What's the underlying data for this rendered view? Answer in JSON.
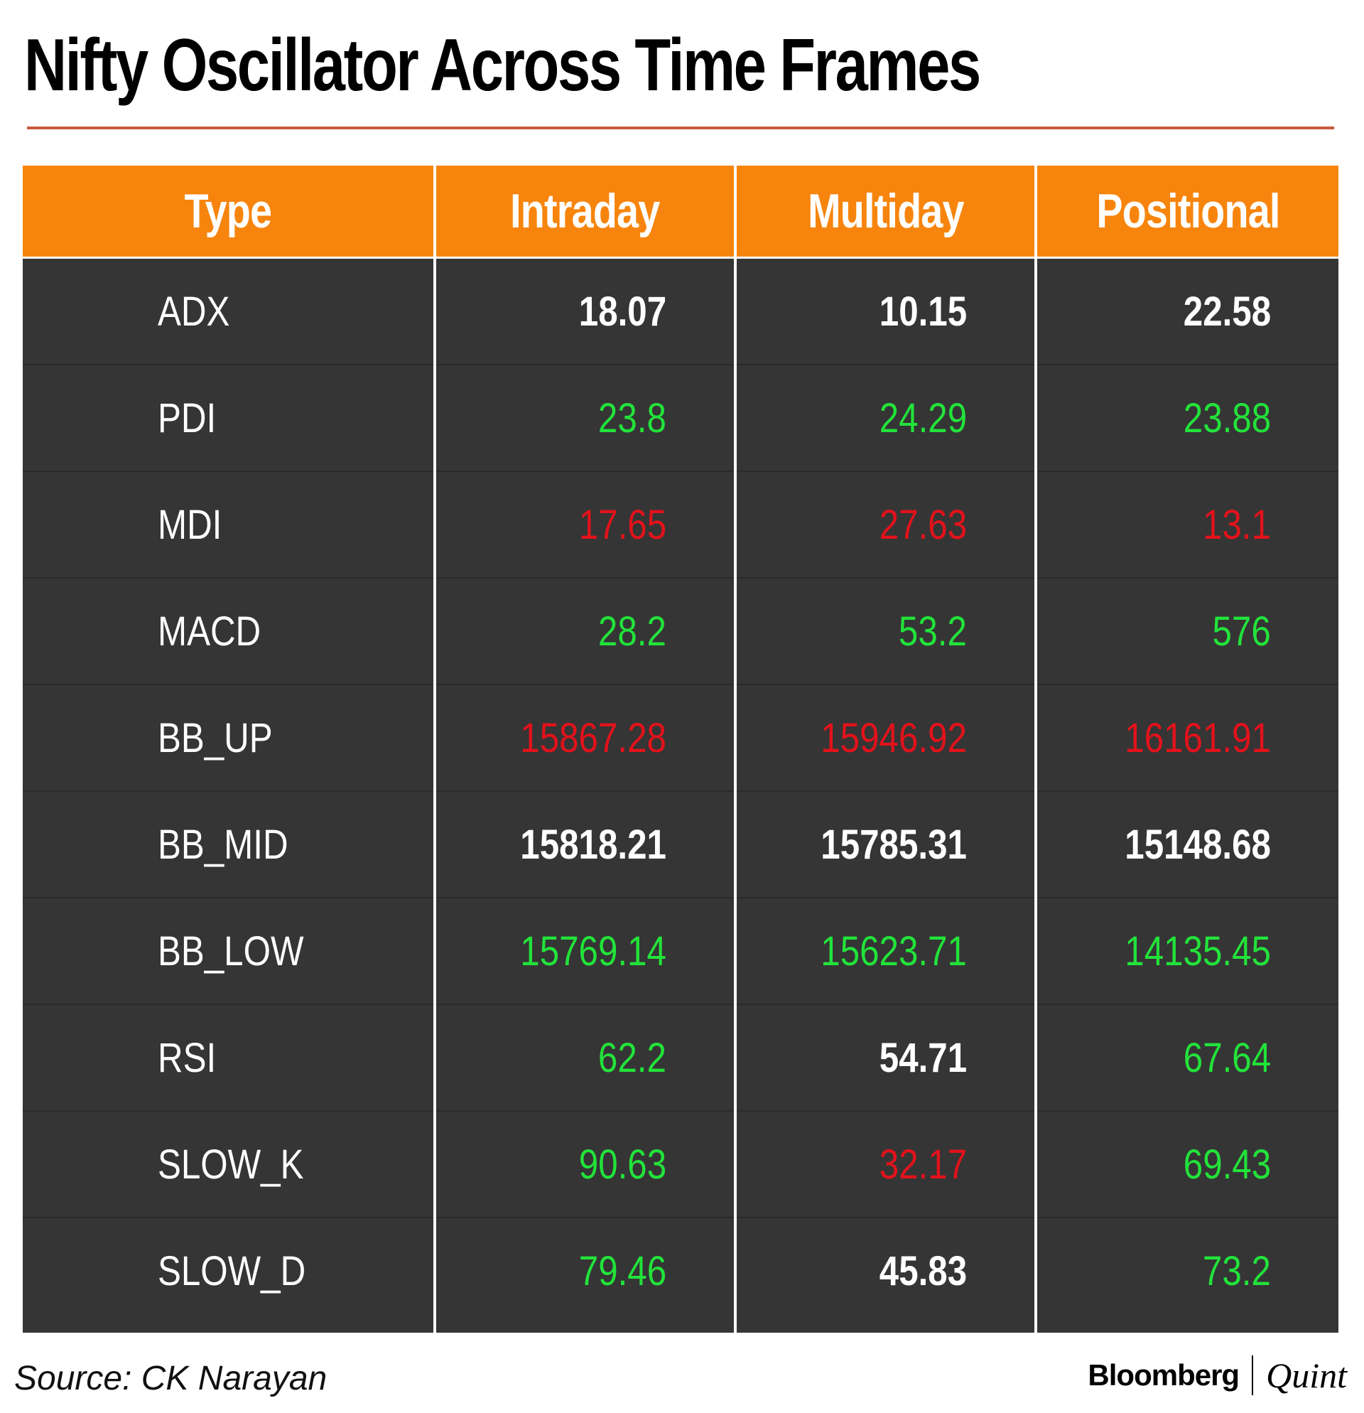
{
  "title": "Nifty Oscillator Across Time Frames",
  "colors": {
    "accent_rule": "#c95a3e",
    "header_bg": "#f7850d",
    "body_bg": "#353535",
    "neutral": "#ffffff",
    "positive": "#22e33a",
    "negative": "#e3121b"
  },
  "table": {
    "headers": [
      "Type",
      "Intraday",
      "Multiday",
      "Positional"
    ],
    "rows": [
      {
        "label": "ADX",
        "values": [
          {
            "text": "18.07",
            "tone": "neutral"
          },
          {
            "text": "10.15",
            "tone": "neutral"
          },
          {
            "text": "22.58",
            "tone": "neutral"
          }
        ]
      },
      {
        "label": "PDI",
        "values": [
          {
            "text": "23.8",
            "tone": "positive"
          },
          {
            "text": "24.29",
            "tone": "positive"
          },
          {
            "text": "23.88",
            "tone": "positive"
          }
        ]
      },
      {
        "label": "MDI",
        "values": [
          {
            "text": "17.65",
            "tone": "negative"
          },
          {
            "text": "27.63",
            "tone": "negative"
          },
          {
            "text": "13.1",
            "tone": "negative"
          }
        ]
      },
      {
        "label": "MACD",
        "values": [
          {
            "text": "28.2",
            "tone": "positive"
          },
          {
            "text": "53.2",
            "tone": "positive"
          },
          {
            "text": "576",
            "tone": "positive"
          }
        ]
      },
      {
        "label": "BB_UP",
        "values": [
          {
            "text": "15867.28",
            "tone": "negative"
          },
          {
            "text": "15946.92",
            "tone": "negative"
          },
          {
            "text": "16161.91",
            "tone": "negative"
          }
        ]
      },
      {
        "label": "BB_MID",
        "values": [
          {
            "text": "15818.21",
            "tone": "neutral"
          },
          {
            "text": "15785.31",
            "tone": "neutral"
          },
          {
            "text": "15148.68",
            "tone": "neutral"
          }
        ]
      },
      {
        "label": "BB_LOW",
        "values": [
          {
            "text": "15769.14",
            "tone": "positive"
          },
          {
            "text": "15623.71",
            "tone": "positive"
          },
          {
            "text": "14135.45",
            "tone": "positive"
          }
        ]
      },
      {
        "label": "RSI",
        "values": [
          {
            "text": "62.2",
            "tone": "positive"
          },
          {
            "text": "54.71",
            "tone": "neutral"
          },
          {
            "text": "67.64",
            "tone": "positive"
          }
        ]
      },
      {
        "label": "SLOW_K",
        "values": [
          {
            "text": "90.63",
            "tone": "positive"
          },
          {
            "text": "32.17",
            "tone": "negative"
          },
          {
            "text": "69.43",
            "tone": "positive"
          }
        ]
      },
      {
        "label": "SLOW_D",
        "values": [
          {
            "text": "79.46",
            "tone": "positive"
          },
          {
            "text": "45.83",
            "tone": "neutral"
          },
          {
            "text": "73.2",
            "tone": "positive"
          }
        ]
      }
    ]
  },
  "footer": {
    "source": "Source: CK Narayan",
    "brand_primary": "Bloomberg",
    "brand_secondary": "Quint"
  }
}
